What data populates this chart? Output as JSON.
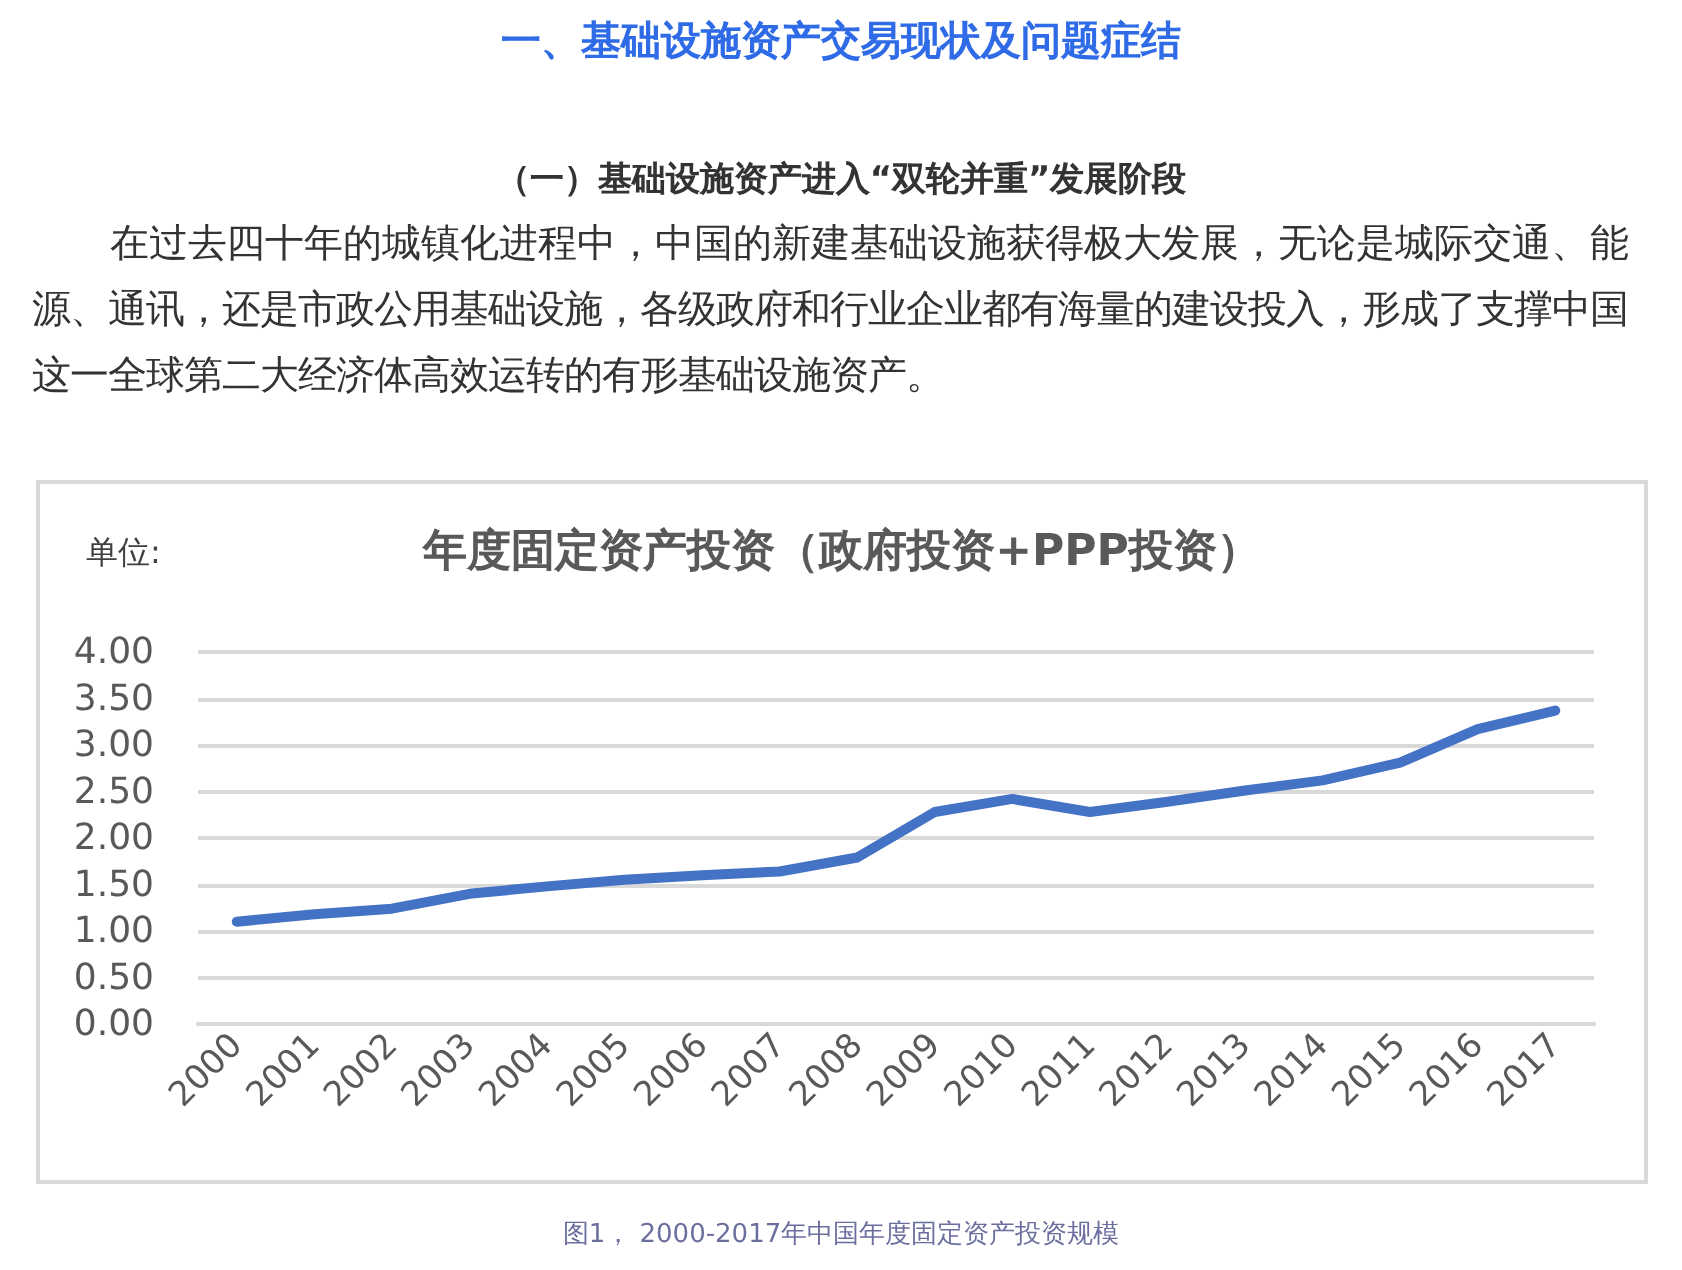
{
  "chart_data": {
    "type": "line",
    "title": "年度固定资产投资（政府投资+PPP投资）",
    "ylabel": "单位:",
    "annotations": [
      "一、基础设施资产交易现状及问题症结",
      "（一）基础设施资产进入“双轮并重”发展阶段",
      "在过去四十年的城镇化进程中，中国的新建基础设施获得极大发展，无论是城际交通、能源、通讯，还是市政公用基础设施，各级政府和行业企业都有海量的建设投入，形成了支撑中国这一全球第二大经济体高效运转的有形基础设施资产。",
      "图1， 2000-2017年中国年度固定资产投资规模"
    ],
    "categories": [
      "2000",
      "2001",
      "2002",
      "2003",
      "2004",
      "2005",
      "2006",
      "2007",
      "2008",
      "2009",
      "2010",
      "2011",
      "2012",
      "2013",
      "2014",
      "2015",
      "2016",
      "2017"
    ],
    "series": [
      {
        "color": "#4472c4",
        "values": [
          1.1,
          1.18,
          1.24,
          1.4,
          1.48,
          1.55,
          1.6,
          1.64,
          1.79,
          2.28,
          2.42,
          2.28,
          2.39,
          2.51,
          2.62,
          2.81,
          3.17,
          3.37
        ]
      }
    ],
    "ylim": [
      0,
      4
    ],
    "yticks": [
      {
        "value": 0,
        "label": "0.00"
      },
      {
        "value": 0.5,
        "label": "0.50"
      },
      {
        "value": 1,
        "label": "1.00"
      },
      {
        "value": 1.5,
        "label": "1.50"
      },
      {
        "value": 2,
        "label": "2.00"
      },
      {
        "value": 2.5,
        "label": "2.50"
      },
      {
        "value": 3,
        "label": "3.00"
      },
      {
        "value": 3.5,
        "label": "3.50"
      },
      {
        "value": 4,
        "label": "4.00"
      }
    ],
    "grid": "y",
    "marker": "none",
    "line_style": "solid"
  }
}
